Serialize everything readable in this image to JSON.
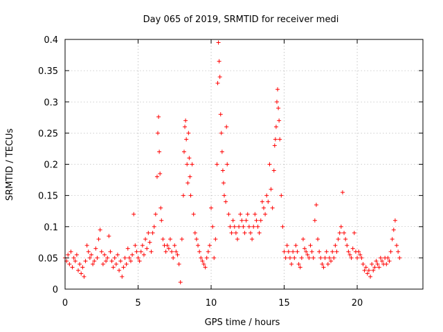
{
  "chart_data": {
    "type": "scatter",
    "title": "Day 065 of 2019, SRMTID for receiver medi",
    "xlabel": "GPS time / hours",
    "ylabel": "SRMTID / TECUs",
    "xlim": [
      0,
      24.5
    ],
    "ylim": [
      0,
      0.4
    ],
    "xticks": [
      0,
      5,
      10,
      15,
      20
    ],
    "xtick_labels": [
      "0",
      "5",
      "10",
      "15",
      "20"
    ],
    "yticks": [
      0,
      0.05,
      0.1,
      0.15,
      0.2,
      0.25,
      0.3,
      0.35,
      0.4
    ],
    "ytick_labels": [
      "0",
      "0.05",
      "0.1",
      "0.15",
      "0.2",
      "0.25",
      "0.3",
      "0.35",
      "0.4"
    ],
    "grid": true,
    "marker": "+",
    "color": "#ff0000",
    "series": [
      {
        "name": "SRMTID",
        "points": [
          [
            0.0,
            0.05
          ],
          [
            0.1,
            0.045
          ],
          [
            0.2,
            0.055
          ],
          [
            0.3,
            0.04
          ],
          [
            0.4,
            0.06
          ],
          [
            0.5,
            0.035
          ],
          [
            0.6,
            0.05
          ],
          [
            0.7,
            0.045
          ],
          [
            0.8,
            0.055
          ],
          [
            0.9,
            0.03
          ],
          [
            1.0,
            0.04
          ],
          [
            1.1,
            0.025
          ],
          [
            1.2,
            0.035
          ],
          [
            1.3,
            0.02
          ],
          [
            1.4,
            0.045
          ],
          [
            1.5,
            0.07
          ],
          [
            1.6,
            0.06
          ],
          [
            1.7,
            0.05
          ],
          [
            1.8,
            0.055
          ],
          [
            1.9,
            0.04
          ],
          [
            2.0,
            0.045
          ],
          [
            2.1,
            0.065
          ],
          [
            2.2,
            0.05
          ],
          [
            2.3,
            0.08
          ],
          [
            2.4,
            0.095
          ],
          [
            2.5,
            0.06
          ],
          [
            2.6,
            0.04
          ],
          [
            2.7,
            0.055
          ],
          [
            2.8,
            0.045
          ],
          [
            2.9,
            0.05
          ],
          [
            3.0,
            0.085
          ],
          [
            3.1,
            0.06
          ],
          [
            3.2,
            0.045
          ],
          [
            3.3,
            0.035
          ],
          [
            3.4,
            0.05
          ],
          [
            3.5,
            0.04
          ],
          [
            3.6,
            0.055
          ],
          [
            3.7,
            0.03
          ],
          [
            3.8,
            0.045
          ],
          [
            3.9,
            0.02
          ],
          [
            4.0,
            0.035
          ],
          [
            4.1,
            0.05
          ],
          [
            4.2,
            0.04
          ],
          [
            4.3,
            0.065
          ],
          [
            4.4,
            0.05
          ],
          [
            4.5,
            0.045
          ],
          [
            4.6,
            0.055
          ],
          [
            4.7,
            0.12
          ],
          [
            4.8,
            0.07
          ],
          [
            4.9,
            0.06
          ],
          [
            5.0,
            0.05
          ],
          [
            5.1,
            0.045
          ],
          [
            5.2,
            0.06
          ],
          [
            5.3,
            0.07
          ],
          [
            5.4,
            0.055
          ],
          [
            5.5,
            0.08
          ],
          [
            5.6,
            0.065
          ],
          [
            5.7,
            0.09
          ],
          [
            5.8,
            0.075
          ],
          [
            5.9,
            0.06
          ],
          [
            6.0,
            0.09
          ],
          [
            6.1,
            0.1
          ],
          [
            6.2,
            0.12
          ],
          [
            6.3,
            0.18
          ],
          [
            6.35,
            0.25
          ],
          [
            6.4,
            0.276
          ],
          [
            6.45,
            0.22
          ],
          [
            6.5,
            0.185
          ],
          [
            6.55,
            0.13
          ],
          [
            6.6,
            0.11
          ],
          [
            6.7,
            0.08
          ],
          [
            6.8,
            0.07
          ],
          [
            6.9,
            0.06
          ],
          [
            7.0,
            0.07
          ],
          [
            7.1,
            0.065
          ],
          [
            7.2,
            0.08
          ],
          [
            7.3,
            0.06
          ],
          [
            7.4,
            0.05
          ],
          [
            7.5,
            0.07
          ],
          [
            7.6,
            0.06
          ],
          [
            7.7,
            0.055
          ],
          [
            7.8,
            0.04
          ],
          [
            7.9,
            0.011
          ],
          [
            8.0,
            0.08
          ],
          [
            8.1,
            0.15
          ],
          [
            8.15,
            0.22
          ],
          [
            8.2,
            0.26
          ],
          [
            8.25,
            0.27
          ],
          [
            8.3,
            0.24
          ],
          [
            8.35,
            0.2
          ],
          [
            8.4,
            0.17
          ],
          [
            8.45,
            0.25
          ],
          [
            8.5,
            0.21
          ],
          [
            8.55,
            0.18
          ],
          [
            8.6,
            0.15
          ],
          [
            8.7,
            0.2
          ],
          [
            8.8,
            0.12
          ],
          [
            8.9,
            0.09
          ],
          [
            9.0,
            0.08
          ],
          [
            9.1,
            0.07
          ],
          [
            9.2,
            0.06
          ],
          [
            9.3,
            0.05
          ],
          [
            9.4,
            0.045
          ],
          [
            9.5,
            0.04
          ],
          [
            9.6,
            0.035
          ],
          [
            9.7,
            0.05
          ],
          [
            9.8,
            0.06
          ],
          [
            9.9,
            0.07
          ],
          [
            10.0,
            0.13
          ],
          [
            10.1,
            0.1
          ],
          [
            10.2,
            0.05
          ],
          [
            10.3,
            0.08
          ],
          [
            10.4,
            0.2
          ],
          [
            10.45,
            0.33
          ],
          [
            10.5,
            0.395
          ],
          [
            10.55,
            0.365
          ],
          [
            10.6,
            0.34
          ],
          [
            10.65,
            0.28
          ],
          [
            10.7,
            0.25
          ],
          [
            10.75,
            0.22
          ],
          [
            10.8,
            0.19
          ],
          [
            10.85,
            0.17
          ],
          [
            10.9,
            0.15
          ],
          [
            11.0,
            0.14
          ],
          [
            11.05,
            0.26
          ],
          [
            11.1,
            0.2
          ],
          [
            11.2,
            0.12
          ],
          [
            11.3,
            0.1
          ],
          [
            11.4,
            0.09
          ],
          [
            11.5,
            0.11
          ],
          [
            11.6,
            0.1
          ],
          [
            11.7,
            0.09
          ],
          [
            11.8,
            0.08
          ],
          [
            11.9,
            0.1
          ],
          [
            12.0,
            0.12
          ],
          [
            12.1,
            0.11
          ],
          [
            12.2,
            0.1
          ],
          [
            12.3,
            0.09
          ],
          [
            12.4,
            0.11
          ],
          [
            12.5,
            0.12
          ],
          [
            12.6,
            0.1
          ],
          [
            12.7,
            0.09
          ],
          [
            12.8,
            0.08
          ],
          [
            12.9,
            0.1
          ],
          [
            13.0,
            0.12
          ],
          [
            13.1,
            0.11
          ],
          [
            13.2,
            0.1
          ],
          [
            13.3,
            0.09
          ],
          [
            13.4,
            0.11
          ],
          [
            13.5,
            0.14
          ],
          [
            13.6,
            0.13
          ],
          [
            13.7,
            0.12
          ],
          [
            13.8,
            0.15
          ],
          [
            13.9,
            0.14
          ],
          [
            14.0,
            0.2
          ],
          [
            14.1,
            0.16
          ],
          [
            14.2,
            0.13
          ],
          [
            14.3,
            0.19
          ],
          [
            14.35,
            0.23
          ],
          [
            14.4,
            0.24
          ],
          [
            14.45,
            0.26
          ],
          [
            14.5,
            0.3
          ],
          [
            14.55,
            0.32
          ],
          [
            14.6,
            0.29
          ],
          [
            14.65,
            0.27
          ],
          [
            14.7,
            0.24
          ],
          [
            14.8,
            0.15
          ],
          [
            14.9,
            0.1
          ],
          [
            15.0,
            0.06
          ],
          [
            15.1,
            0.05
          ],
          [
            15.2,
            0.07
          ],
          [
            15.3,
            0.06
          ],
          [
            15.4,
            0.05
          ],
          [
            15.5,
            0.04
          ],
          [
            15.6,
            0.06
          ],
          [
            15.7,
            0.05
          ],
          [
            15.8,
            0.07
          ],
          [
            15.9,
            0.06
          ],
          [
            16.0,
            0.04
          ],
          [
            16.1,
            0.035
          ],
          [
            16.2,
            0.05
          ],
          [
            16.3,
            0.08
          ],
          [
            16.4,
            0.065
          ],
          [
            16.5,
            0.06
          ],
          [
            16.6,
            0.055
          ],
          [
            16.7,
            0.05
          ],
          [
            16.8,
            0.07
          ],
          [
            16.9,
            0.06
          ],
          [
            17.0,
            0.05
          ],
          [
            17.1,
            0.11
          ],
          [
            17.2,
            0.135
          ],
          [
            17.3,
            0.08
          ],
          [
            17.4,
            0.06
          ],
          [
            17.5,
            0.05
          ],
          [
            17.6,
            0.04
          ],
          [
            17.7,
            0.035
          ],
          [
            17.8,
            0.05
          ],
          [
            17.9,
            0.06
          ],
          [
            18.0,
            0.04
          ],
          [
            18.1,
            0.05
          ],
          [
            18.2,
            0.045
          ],
          [
            18.3,
            0.06
          ],
          [
            18.4,
            0.05
          ],
          [
            18.5,
            0.07
          ],
          [
            18.6,
            0.06
          ],
          [
            18.7,
            0.08
          ],
          [
            18.8,
            0.09
          ],
          [
            18.9,
            0.1
          ],
          [
            19.0,
            0.155
          ],
          [
            19.1,
            0.09
          ],
          [
            19.2,
            0.08
          ],
          [
            19.3,
            0.07
          ],
          [
            19.4,
            0.06
          ],
          [
            19.5,
            0.055
          ],
          [
            19.6,
            0.05
          ],
          [
            19.7,
            0.065
          ],
          [
            19.8,
            0.09
          ],
          [
            19.9,
            0.06
          ],
          [
            20.0,
            0.05
          ],
          [
            20.1,
            0.06
          ],
          [
            20.2,
            0.055
          ],
          [
            20.3,
            0.05
          ],
          [
            20.4,
            0.04
          ],
          [
            20.5,
            0.03
          ],
          [
            20.6,
            0.035
          ],
          [
            20.7,
            0.025
          ],
          [
            20.8,
            0.03
          ],
          [
            20.9,
            0.02
          ],
          [
            21.0,
            0.04
          ],
          [
            21.1,
            0.03
          ],
          [
            21.2,
            0.035
          ],
          [
            21.3,
            0.045
          ],
          [
            21.4,
            0.04
          ],
          [
            21.5,
            0.035
          ],
          [
            21.6,
            0.05
          ],
          [
            21.7,
            0.045
          ],
          [
            21.8,
            0.04
          ],
          [
            21.9,
            0.05
          ],
          [
            22.0,
            0.04
          ],
          [
            22.1,
            0.05
          ],
          [
            22.2,
            0.045
          ],
          [
            22.3,
            0.06
          ],
          [
            22.4,
            0.08
          ],
          [
            22.5,
            0.095
          ],
          [
            22.6,
            0.11
          ],
          [
            22.7,
            0.07
          ],
          [
            22.8,
            0.06
          ],
          [
            22.9,
            0.05
          ]
        ]
      }
    ]
  }
}
